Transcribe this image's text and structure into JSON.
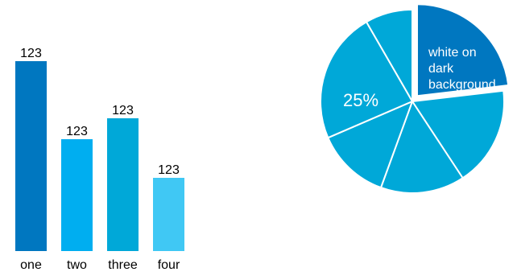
{
  "chart_data": [
    {
      "type": "bar",
      "categories": [
        "one",
        "two",
        "three",
        "four"
      ],
      "values": [
        123,
        123,
        123,
        123
      ],
      "data_labels": [
        "123",
        "123",
        "123",
        "123"
      ],
      "colors": [
        "#0077c0",
        "#00aef0",
        "#00a8d8",
        "#40c8f4"
      ],
      "grid": false,
      "legend": "none"
    },
    {
      "type": "pie",
      "slices": [
        {
          "value": 25,
          "color": "#0077c0",
          "exploded": true,
          "label": "white on dark background"
        },
        {
          "value": 19,
          "color": "#00a8d8",
          "exploded": false,
          "label": ""
        },
        {
          "value": 16,
          "color": "#00a8d8",
          "exploded": false,
          "label": ""
        },
        {
          "value": 14,
          "color": "#00a8d8",
          "exploded": false,
          "label": ""
        },
        {
          "value": 25,
          "color": "#00a8d8",
          "exploded": false,
          "label": "25%"
        },
        {
          "value": 9,
          "color": "#00a8d8",
          "exploded": false,
          "label": ""
        }
      ],
      "label_color": "#ffffff",
      "legend": "none"
    }
  ]
}
